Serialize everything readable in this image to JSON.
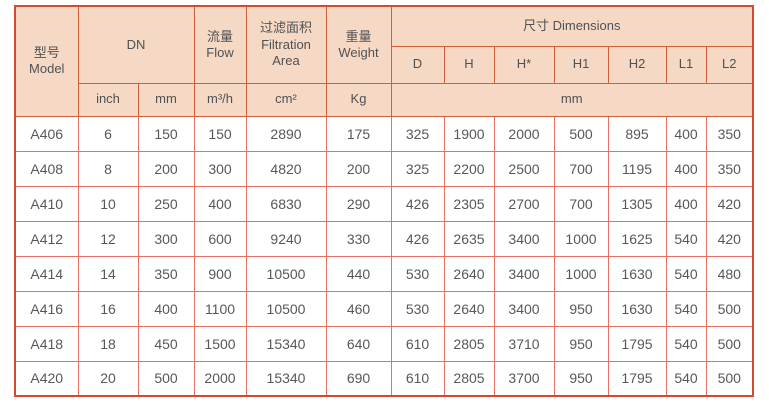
{
  "colors": {
    "header_bg": "#f6d9c5",
    "outer_border": "#d44a30",
    "header_border": "#cf5f3d",
    "body_border": "#e77263",
    "text": "#595757"
  },
  "table": {
    "header": {
      "model_zh": "型号",
      "model_en": "Model",
      "dn": "DN",
      "flow_zh": "流量",
      "flow_en": "Flow",
      "filtration_zh": "过滤面积",
      "filtration_en_line1": "Filtration",
      "filtration_en_line2": "Area",
      "weight_zh": "重量",
      "weight_en": "Weight",
      "dimensions": "尺寸 Dimensions",
      "dim_cols": [
        "D",
        "H",
        "H*",
        "H1",
        "H2",
        "L1",
        "L2"
      ],
      "units": {
        "inch": "inch",
        "mm": "mm",
        "flow": "m³/h",
        "area": "cm²",
        "weight": "Kg",
        "dims": "mm"
      }
    },
    "rows": [
      {
        "model": "A406",
        "values": [
          "6",
          "150",
          "150",
          "2890",
          "175",
          "325",
          "1900",
          "2000",
          "500",
          "895",
          "400",
          "350"
        ]
      },
      {
        "model": "A408",
        "values": [
          "8",
          "200",
          "300",
          "4820",
          "200",
          "325",
          "2200",
          "2500",
          "700",
          "1195",
          "400",
          "350"
        ]
      },
      {
        "model": "A410",
        "values": [
          "10",
          "250",
          "400",
          "6830",
          "290",
          "426",
          "2305",
          "2700",
          "700",
          "1305",
          "400",
          "420"
        ]
      },
      {
        "model": "A412",
        "values": [
          "12",
          "300",
          "600",
          "9240",
          "330",
          "426",
          "2635",
          "3400",
          "1000",
          "1625",
          "540",
          "420"
        ]
      },
      {
        "model": "A414",
        "values": [
          "14",
          "350",
          "900",
          "10500",
          "440",
          "530",
          "2640",
          "3400",
          "1000",
          "1630",
          "540",
          "480"
        ]
      },
      {
        "model": "A416",
        "values": [
          "16",
          "400",
          "1100",
          "10500",
          "460",
          "530",
          "2640",
          "3400",
          "950",
          "1630",
          "540",
          "500"
        ]
      },
      {
        "model": "A418",
        "values": [
          "18",
          "450",
          "1500",
          "15340",
          "640",
          "610",
          "2805",
          "3710",
          "950",
          "1795",
          "540",
          "500"
        ]
      },
      {
        "model": "A420",
        "values": [
          "20",
          "500",
          "2000",
          "15340",
          "690",
          "610",
          "2805",
          "3700",
          "950",
          "1795",
          "540",
          "500"
        ]
      }
    ]
  }
}
